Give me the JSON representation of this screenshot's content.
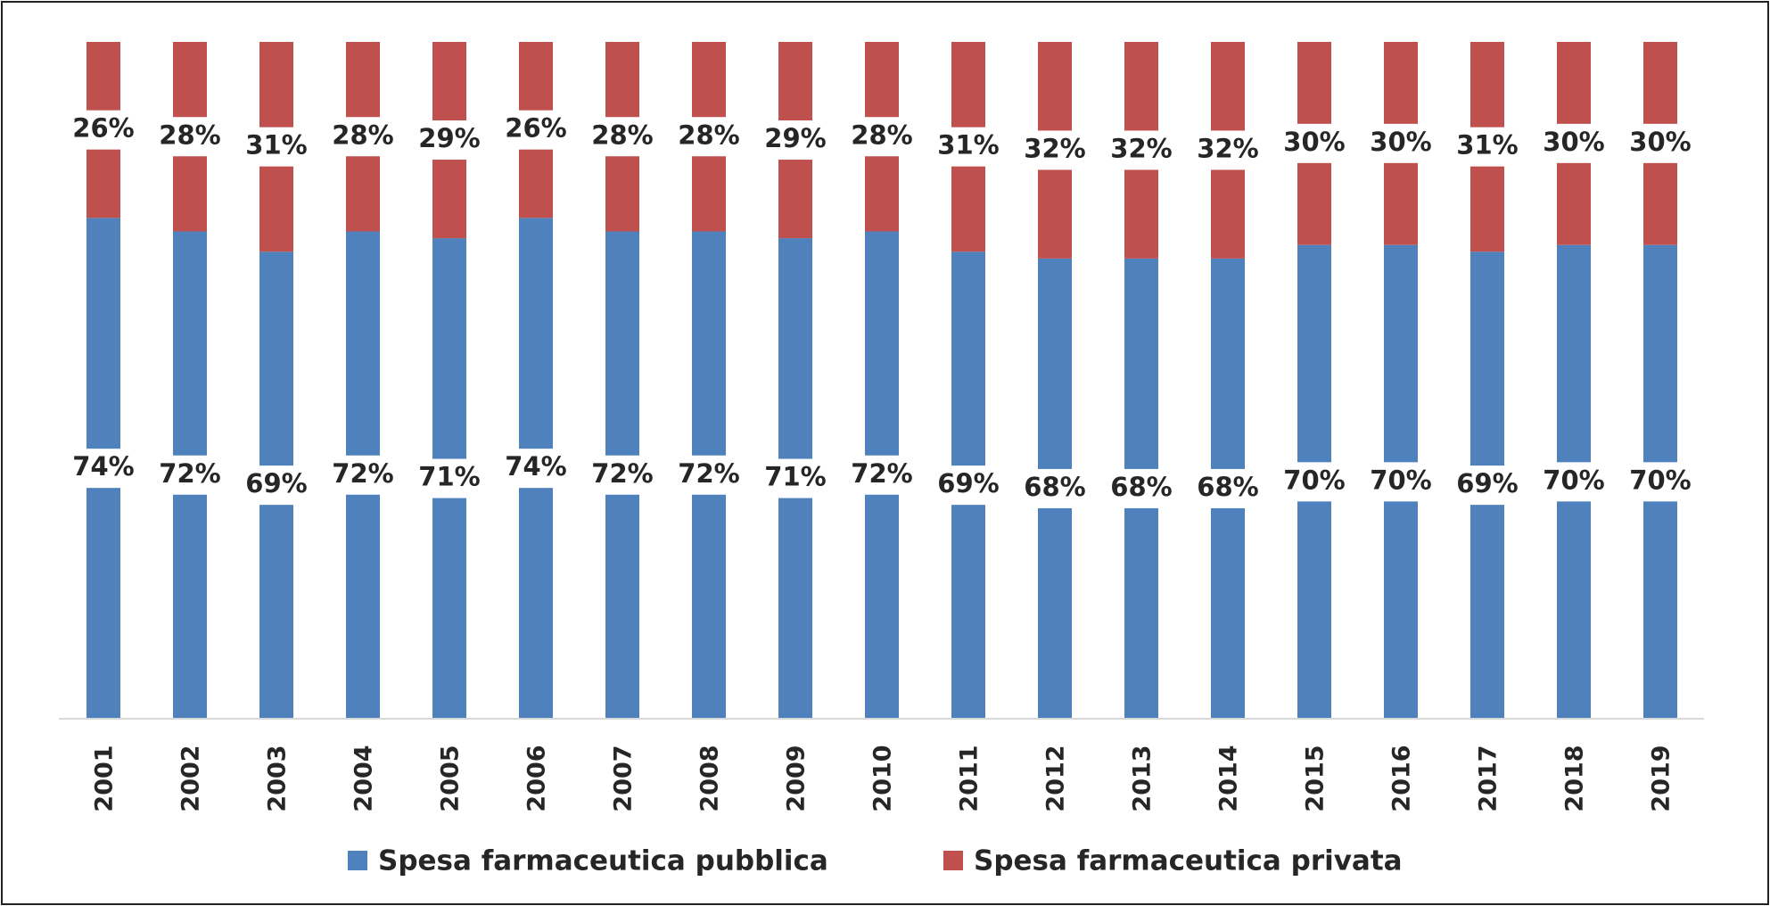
{
  "chart_data": {
    "type": "stacked_bar",
    "categories": [
      "2001",
      "2002",
      "2003",
      "2004",
      "2005",
      "2006",
      "2007",
      "2008",
      "2009",
      "2010",
      "2011",
      "2012",
      "2013",
      "2014",
      "2015",
      "2016",
      "2017",
      "2018",
      "2019"
    ],
    "series": [
      {
        "name": "Spesa farmaceutica pubblica",
        "color": "#4f81bd",
        "values": [
          74,
          72,
          69,
          72,
          71,
          74,
          72,
          72,
          71,
          72,
          69,
          68,
          68,
          68,
          70,
          70,
          69,
          70,
          70
        ],
        "value_labels": [
          "74%",
          "72%",
          "69%",
          "72%",
          "71%",
          "74%",
          "72%",
          "72%",
          "71%",
          "72%",
          "69%",
          "68%",
          "68%",
          "68%",
          "70%",
          "70%",
          "69%",
          "70%",
          "70%"
        ]
      },
      {
        "name": "Spesa farmaceutica privata",
        "color": "#c0504d",
        "values": [
          26,
          28,
          31,
          28,
          29,
          26,
          28,
          28,
          29,
          28,
          31,
          32,
          32,
          32,
          30,
          30,
          31,
          30,
          30
        ],
        "value_labels": [
          "26%",
          "28%",
          "31%",
          "28%",
          "29%",
          "26%",
          "28%",
          "28%",
          "29%",
          "28%",
          "31%",
          "32%",
          "32%",
          "32%",
          "30%",
          "30%",
          "31%",
          "30%",
          "30%"
        ]
      }
    ],
    "ylim": [
      0,
      100
    ],
    "legend": "bottom"
  }
}
